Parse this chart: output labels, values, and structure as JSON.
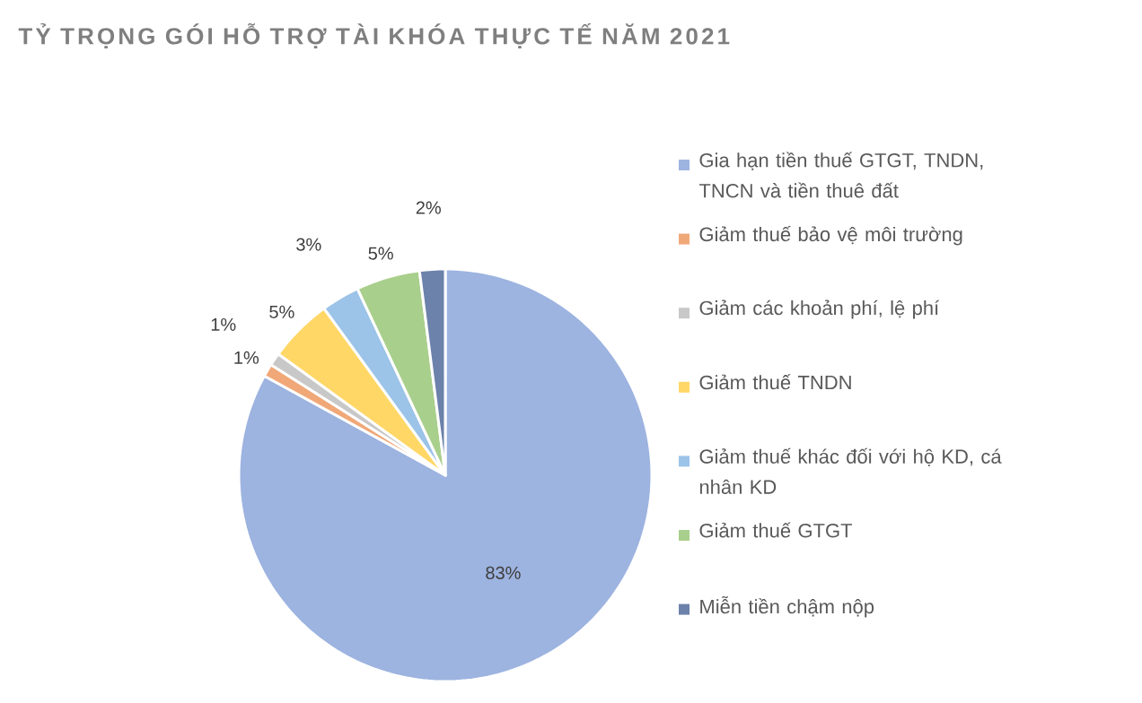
{
  "chart_data": {
    "type": "pie",
    "title": "TỶ TRỌNG GÓI HỖ TRỢ TÀI KHÓA THỰC TẾ NĂM 2021",
    "categories": [
      "Gia hạn tiền thuế GTGT, TNDN, TNCN và tiền thuê đất",
      "Giảm thuế bảo vệ môi trường",
      "Giảm các khoản phí, lệ phí",
      "Giảm thuế TNDN",
      "Giảm thuế khác đối với hộ KD, cá nhân KD",
      "Giảm thuế GTGT",
      "Miễn tiền chậm nộp"
    ],
    "values": [
      83,
      1,
      1,
      5,
      3,
      5,
      2
    ],
    "colors": [
      "#9db3e0",
      "#f0a878",
      "#c8c8c8",
      "#ffd766",
      "#9cc3e8",
      "#a9cf8c",
      "#6c82ab"
    ],
    "value_labels": [
      "83%",
      "1%",
      "1%",
      "5%",
      "3%",
      "5%",
      "2%"
    ],
    "legend": "right"
  }
}
